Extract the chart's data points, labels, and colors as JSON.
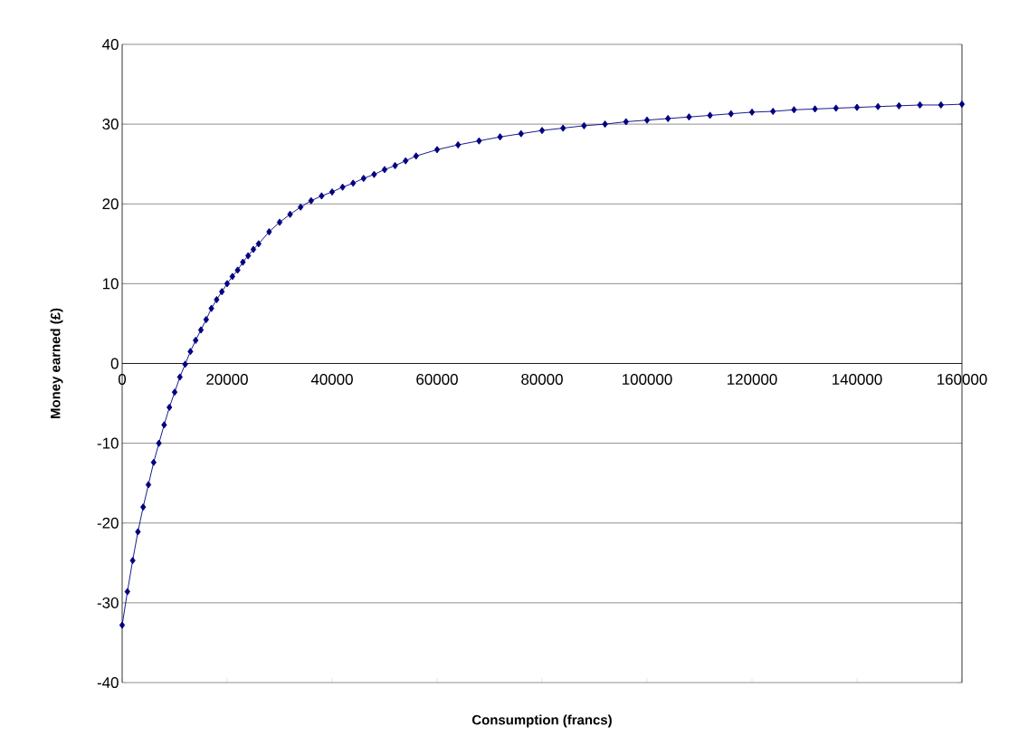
{
  "chart_data": {
    "type": "line",
    "xlabel": "Consumption (francs)",
    "ylabel": "Money earned (£)",
    "x": [
      0,
      1000,
      2000,
      3000,
      4000,
      5000,
      6000,
      7000,
      8000,
      9000,
      10000,
      11000,
      12000,
      13000,
      14000,
      15000,
      16000,
      17000,
      18000,
      19000,
      20000,
      21000,
      22000,
      23000,
      24000,
      25000,
      26000,
      28000,
      30000,
      32000,
      34000,
      36000,
      38000,
      40000,
      42000,
      44000,
      46000,
      48000,
      50000,
      52000,
      54000,
      56000,
      60000,
      64000,
      68000,
      72000,
      76000,
      80000,
      84000,
      88000,
      92000,
      96000,
      100000,
      104000,
      108000,
      112000,
      116000,
      120000,
      124000,
      128000,
      132000,
      136000,
      140000,
      144000,
      148000,
      152000,
      156000,
      160000
    ],
    "series": [
      {
        "color": "#000080",
        "values": [
          -32.8,
          -28.6,
          -24.7,
          -21.1,
          -18.0,
          -15.2,
          -12.4,
          -10.0,
          -7.7,
          -5.5,
          -3.6,
          -1.7,
          -0.1,
          1.5,
          2.9,
          4.2,
          5.5,
          6.9,
          8.0,
          9.0,
          10.0,
          10.9,
          11.7,
          12.7,
          13.5,
          14.3,
          15.0,
          16.5,
          17.7,
          18.7,
          19.6,
          20.4,
          21.0,
          21.5,
          22.1,
          22.6,
          23.2,
          23.7,
          24.3,
          24.8,
          25.4,
          26.0,
          26.8,
          27.4,
          27.9,
          28.4,
          28.8,
          29.2,
          29.5,
          29.8,
          30.0,
          30.3,
          30.5,
          30.7,
          30.9,
          31.1,
          31.3,
          31.5,
          31.6,
          31.8,
          31.9,
          32.0,
          32.1,
          32.2,
          32.3,
          32.4,
          32.4,
          32.5
        ]
      }
    ],
    "xlim": [
      0,
      160000
    ],
    "xticks": [
      0,
      20000,
      40000,
      60000,
      80000,
      100000,
      120000,
      140000,
      160000
    ],
    "ylim": [
      -40,
      40
    ],
    "yticks": [
      -40,
      -30,
      -20,
      -10,
      0,
      10,
      20,
      30,
      40
    ],
    "grid": "y",
    "marker": "diamond",
    "line_style": "solid"
  }
}
